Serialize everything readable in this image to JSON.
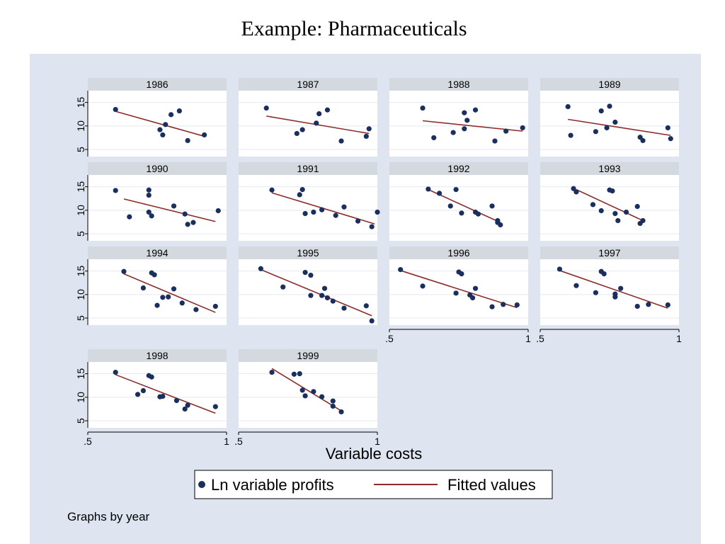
{
  "page_title": "Example: Pharmaceuticals",
  "chart_data": {
    "type": "scatter",
    "xlabel": "Variable costs",
    "note": "Graphs by year",
    "xlim": [
      0.5,
      1
    ],
    "ylim": [
      3.5,
      17.5
    ],
    "x_ticks": [
      ".5",
      "1"
    ],
    "y_ticks": [
      5,
      10,
      15
    ],
    "grid": true,
    "legend_position": "bottom",
    "legend": [
      {
        "label": "Ln variable profits",
        "marker": "dot",
        "color": "#1a2f5e"
      },
      {
        "label": "Fitted values",
        "marker": "line",
        "color": "#8b2c2c"
      }
    ],
    "series": [
      {
        "name": "Ln variable profits",
        "type": "scatter"
      },
      {
        "name": "Fitted values",
        "type": "line"
      }
    ],
    "panels": [
      {
        "year": "1986",
        "points": [
          [
            0.6,
            13.5
          ],
          [
            0.76,
            9.2
          ],
          [
            0.77,
            8.1
          ],
          [
            0.78,
            10.3
          ],
          [
            0.8,
            12.4
          ],
          [
            0.83,
            13.2
          ],
          [
            0.86,
            6.9
          ],
          [
            0.92,
            8.1
          ]
        ],
        "fit": [
          [
            0.6,
            13.1
          ],
          [
            0.92,
            7.8
          ]
        ]
      },
      {
        "year": "1987",
        "points": [
          [
            0.6,
            13.8
          ],
          [
            0.71,
            8.4
          ],
          [
            0.73,
            9.2
          ],
          [
            0.78,
            10.6
          ],
          [
            0.79,
            12.6
          ],
          [
            0.82,
            13.4
          ],
          [
            0.87,
            6.8
          ],
          [
            0.96,
            7.8
          ],
          [
            0.97,
            9.4
          ]
        ],
        "fit": [
          [
            0.6,
            12.1
          ],
          [
            0.97,
            8.4
          ]
        ]
      },
      {
        "year": "1988",
        "points": [
          [
            0.62,
            13.8
          ],
          [
            0.66,
            7.5
          ],
          [
            0.73,
            8.6
          ],
          [
            0.77,
            9.4
          ],
          [
            0.77,
            12.8
          ],
          [
            0.78,
            11.2
          ],
          [
            0.81,
            13.4
          ],
          [
            0.88,
            6.8
          ],
          [
            0.92,
            8.9
          ],
          [
            0.98,
            9.6
          ]
        ],
        "fit": [
          [
            0.62,
            11.1
          ],
          [
            0.98,
            8.9
          ]
        ]
      },
      {
        "year": "1989",
        "points": [
          [
            0.6,
            14.1
          ],
          [
            0.61,
            8
          ],
          [
            0.7,
            8.8
          ],
          [
            0.72,
            13.2
          ],
          [
            0.74,
            9.6
          ],
          [
            0.75,
            14.2
          ],
          [
            0.77,
            10.8
          ],
          [
            0.86,
            7.6
          ],
          [
            0.87,
            6.9
          ],
          [
            0.96,
            9.6
          ],
          [
            0.97,
            7.3
          ]
        ],
        "fit": [
          [
            0.6,
            11.4
          ],
          [
            0.97,
            8.0
          ]
        ]
      },
      {
        "year": "1990",
        "points": [
          [
            0.6,
            14.2
          ],
          [
            0.65,
            8.6
          ],
          [
            0.72,
            14.3
          ],
          [
            0.72,
            13.2
          ],
          [
            0.72,
            9.6
          ],
          [
            0.73,
            8.8
          ],
          [
            0.81,
            10.9
          ],
          [
            0.85,
            9.2
          ],
          [
            0.86,
            7
          ],
          [
            0.88,
            7.4
          ],
          [
            0.97,
            9.9
          ]
        ],
        "fit": [
          [
            0.63,
            12.4
          ],
          [
            0.96,
            7.6
          ]
        ]
      },
      {
        "year": "1991",
        "points": [
          [
            0.62,
            14.3
          ],
          [
            0.72,
            13.3
          ],
          [
            0.73,
            14.4
          ],
          [
            0.74,
            9.3
          ],
          [
            0.77,
            9.6
          ],
          [
            0.8,
            10.1
          ],
          [
            0.85,
            8.9
          ],
          [
            0.88,
            10.7
          ],
          [
            0.93,
            7.7
          ],
          [
            0.98,
            6.5
          ],
          [
            1,
            9.6
          ]
        ],
        "fit": [
          [
            0.62,
            13.7
          ],
          [
            0.99,
            7.1
          ]
        ]
      },
      {
        "year": "1992",
        "points": [
          [
            0.64,
            14.5
          ],
          [
            0.68,
            13.6
          ],
          [
            0.72,
            10.9
          ],
          [
            0.74,
            14.4
          ],
          [
            0.76,
            9.4
          ],
          [
            0.81,
            9.6
          ],
          [
            0.82,
            9.2
          ],
          [
            0.87,
            10.9
          ],
          [
            0.89,
            7.4
          ],
          [
            0.89,
            7.8
          ],
          [
            0.9,
            6.9
          ]
        ],
        "fit": [
          [
            0.64,
            14.4
          ],
          [
            0.9,
            7.4
          ]
        ]
      },
      {
        "year": "1993",
        "points": [
          [
            0.62,
            14.6
          ],
          [
            0.63,
            13.9
          ],
          [
            0.69,
            11.2
          ],
          [
            0.72,
            9.9
          ],
          [
            0.75,
            14.3
          ],
          [
            0.76,
            14.1
          ],
          [
            0.77,
            9.3
          ],
          [
            0.78,
            7.8
          ],
          [
            0.81,
            9.6
          ],
          [
            0.85,
            10.8
          ],
          [
            0.86,
            7.2
          ],
          [
            0.87,
            7.8
          ]
        ],
        "fit": [
          [
            0.63,
            14.4
          ],
          [
            0.87,
            7.8
          ]
        ]
      },
      {
        "year": "1994",
        "points": [
          [
            0.63,
            14.9
          ],
          [
            0.7,
            11.4
          ],
          [
            0.73,
            14.6
          ],
          [
            0.74,
            14.2
          ],
          [
            0.75,
            7.7
          ],
          [
            0.77,
            9.4
          ],
          [
            0.79,
            9.5
          ],
          [
            0.81,
            11.2
          ],
          [
            0.84,
            8.2
          ],
          [
            0.89,
            6.8
          ],
          [
            0.96,
            7.5
          ]
        ],
        "fit": [
          [
            0.63,
            14.4
          ],
          [
            0.96,
            6.2
          ]
        ]
      },
      {
        "year": "1995",
        "points": [
          [
            0.58,
            15.5
          ],
          [
            0.66,
            11.6
          ],
          [
            0.74,
            14.7
          ],
          [
            0.76,
            14.1
          ],
          [
            0.76,
            9.8
          ],
          [
            0.8,
            9.8
          ],
          [
            0.81,
            11.3
          ],
          [
            0.82,
            9.3
          ],
          [
            0.84,
            8.6
          ],
          [
            0.88,
            7.1
          ],
          [
            0.96,
            7.6
          ],
          [
            0.98,
            4.4
          ]
        ],
        "fit": [
          [
            0.58,
            15.3
          ],
          [
            0.98,
            5.5
          ]
        ]
      },
      {
        "year": "1996",
        "points": [
          [
            0.54,
            15.3
          ],
          [
            0.62,
            11.8
          ],
          [
            0.74,
            10.3
          ],
          [
            0.75,
            14.8
          ],
          [
            0.76,
            14.4
          ],
          [
            0.79,
            9.9
          ],
          [
            0.8,
            9.3
          ],
          [
            0.81,
            11.3
          ],
          [
            0.87,
            7.4
          ],
          [
            0.91,
            7.9
          ],
          [
            0.96,
            7.8
          ]
        ],
        "fit": [
          [
            0.54,
            15.1
          ],
          [
            0.96,
            7.2
          ]
        ]
      },
      {
        "year": "1997",
        "points": [
          [
            0.57,
            15.4
          ],
          [
            0.63,
            11.9
          ],
          [
            0.7,
            10.4
          ],
          [
            0.72,
            14.9
          ],
          [
            0.73,
            14.4
          ],
          [
            0.77,
            10.1
          ],
          [
            0.77,
            9.5
          ],
          [
            0.79,
            11.3
          ],
          [
            0.85,
            7.5
          ],
          [
            0.89,
            7.9
          ],
          [
            0.96,
            7.8
          ]
        ],
        "fit": [
          [
            0.57,
            15.1
          ],
          [
            0.96,
            7.1
          ]
        ]
      },
      {
        "year": "1998",
        "points": [
          [
            0.6,
            15.3
          ],
          [
            0.68,
            10.6
          ],
          [
            0.7,
            11.4
          ],
          [
            0.72,
            14.6
          ],
          [
            0.73,
            14.3
          ],
          [
            0.76,
            10.1
          ],
          [
            0.77,
            10.2
          ],
          [
            0.82,
            9.3
          ],
          [
            0.85,
            7.5
          ],
          [
            0.86,
            8.3
          ],
          [
            0.96,
            8
          ]
        ],
        "fit": [
          [
            0.6,
            14.8
          ],
          [
            0.96,
            6.6
          ]
        ]
      },
      {
        "year": "1999",
        "points": [
          [
            0.62,
            15.3
          ],
          [
            0.7,
            14.9
          ],
          [
            0.72,
            15
          ],
          [
            0.73,
            11.5
          ],
          [
            0.74,
            10.3
          ],
          [
            0.77,
            11.2
          ],
          [
            0.8,
            10.1
          ],
          [
            0.84,
            9.2
          ],
          [
            0.84,
            8.1
          ],
          [
            0.87,
            6.9
          ]
        ],
        "fit": [
          [
            0.62,
            16.1
          ],
          [
            0.87,
            7.1
          ]
        ]
      }
    ]
  }
}
